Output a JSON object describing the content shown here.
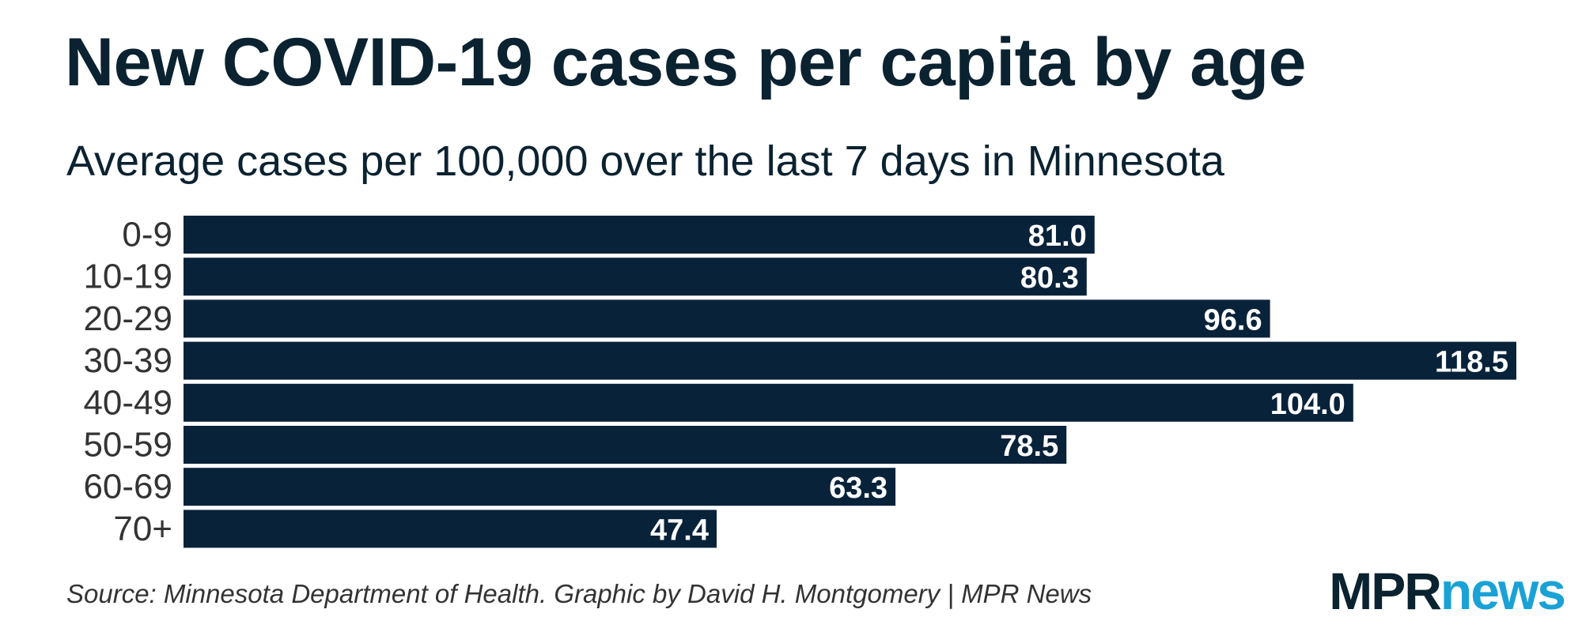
{
  "colors": {
    "bar": "#08223a",
    "title": "#0b2230",
    "logo_dark": "#0b2230",
    "logo_accent": "#1aa2d6"
  },
  "chart_data": {
    "type": "bar",
    "orientation": "horizontal",
    "title": "New COVID-19 cases per capita by age",
    "subtitle": "Average cases per 100,000 over the last 7 days in Minnesota",
    "categories": [
      "0-9",
      "10-19",
      "20-29",
      "30-39",
      "40-49",
      "50-59",
      "60-69",
      "70+"
    ],
    "values": [
      81.0,
      80.3,
      96.6,
      118.5,
      104.0,
      78.5,
      63.3,
      47.4
    ],
    "value_labels": [
      "81.0",
      "80.3",
      "96.6",
      "118.5",
      "104.0",
      "78.5",
      "63.3",
      "47.4"
    ],
    "xlim": [
      0,
      118.5
    ],
    "xlabel": "",
    "ylabel": "",
    "grid": false,
    "legend": "none"
  },
  "footer": {
    "source": "Source: Minnesota Department of Health. Graphic by David H. Montgomery | MPR News"
  },
  "logo": {
    "part1": "MPR",
    "part2": "news"
  }
}
